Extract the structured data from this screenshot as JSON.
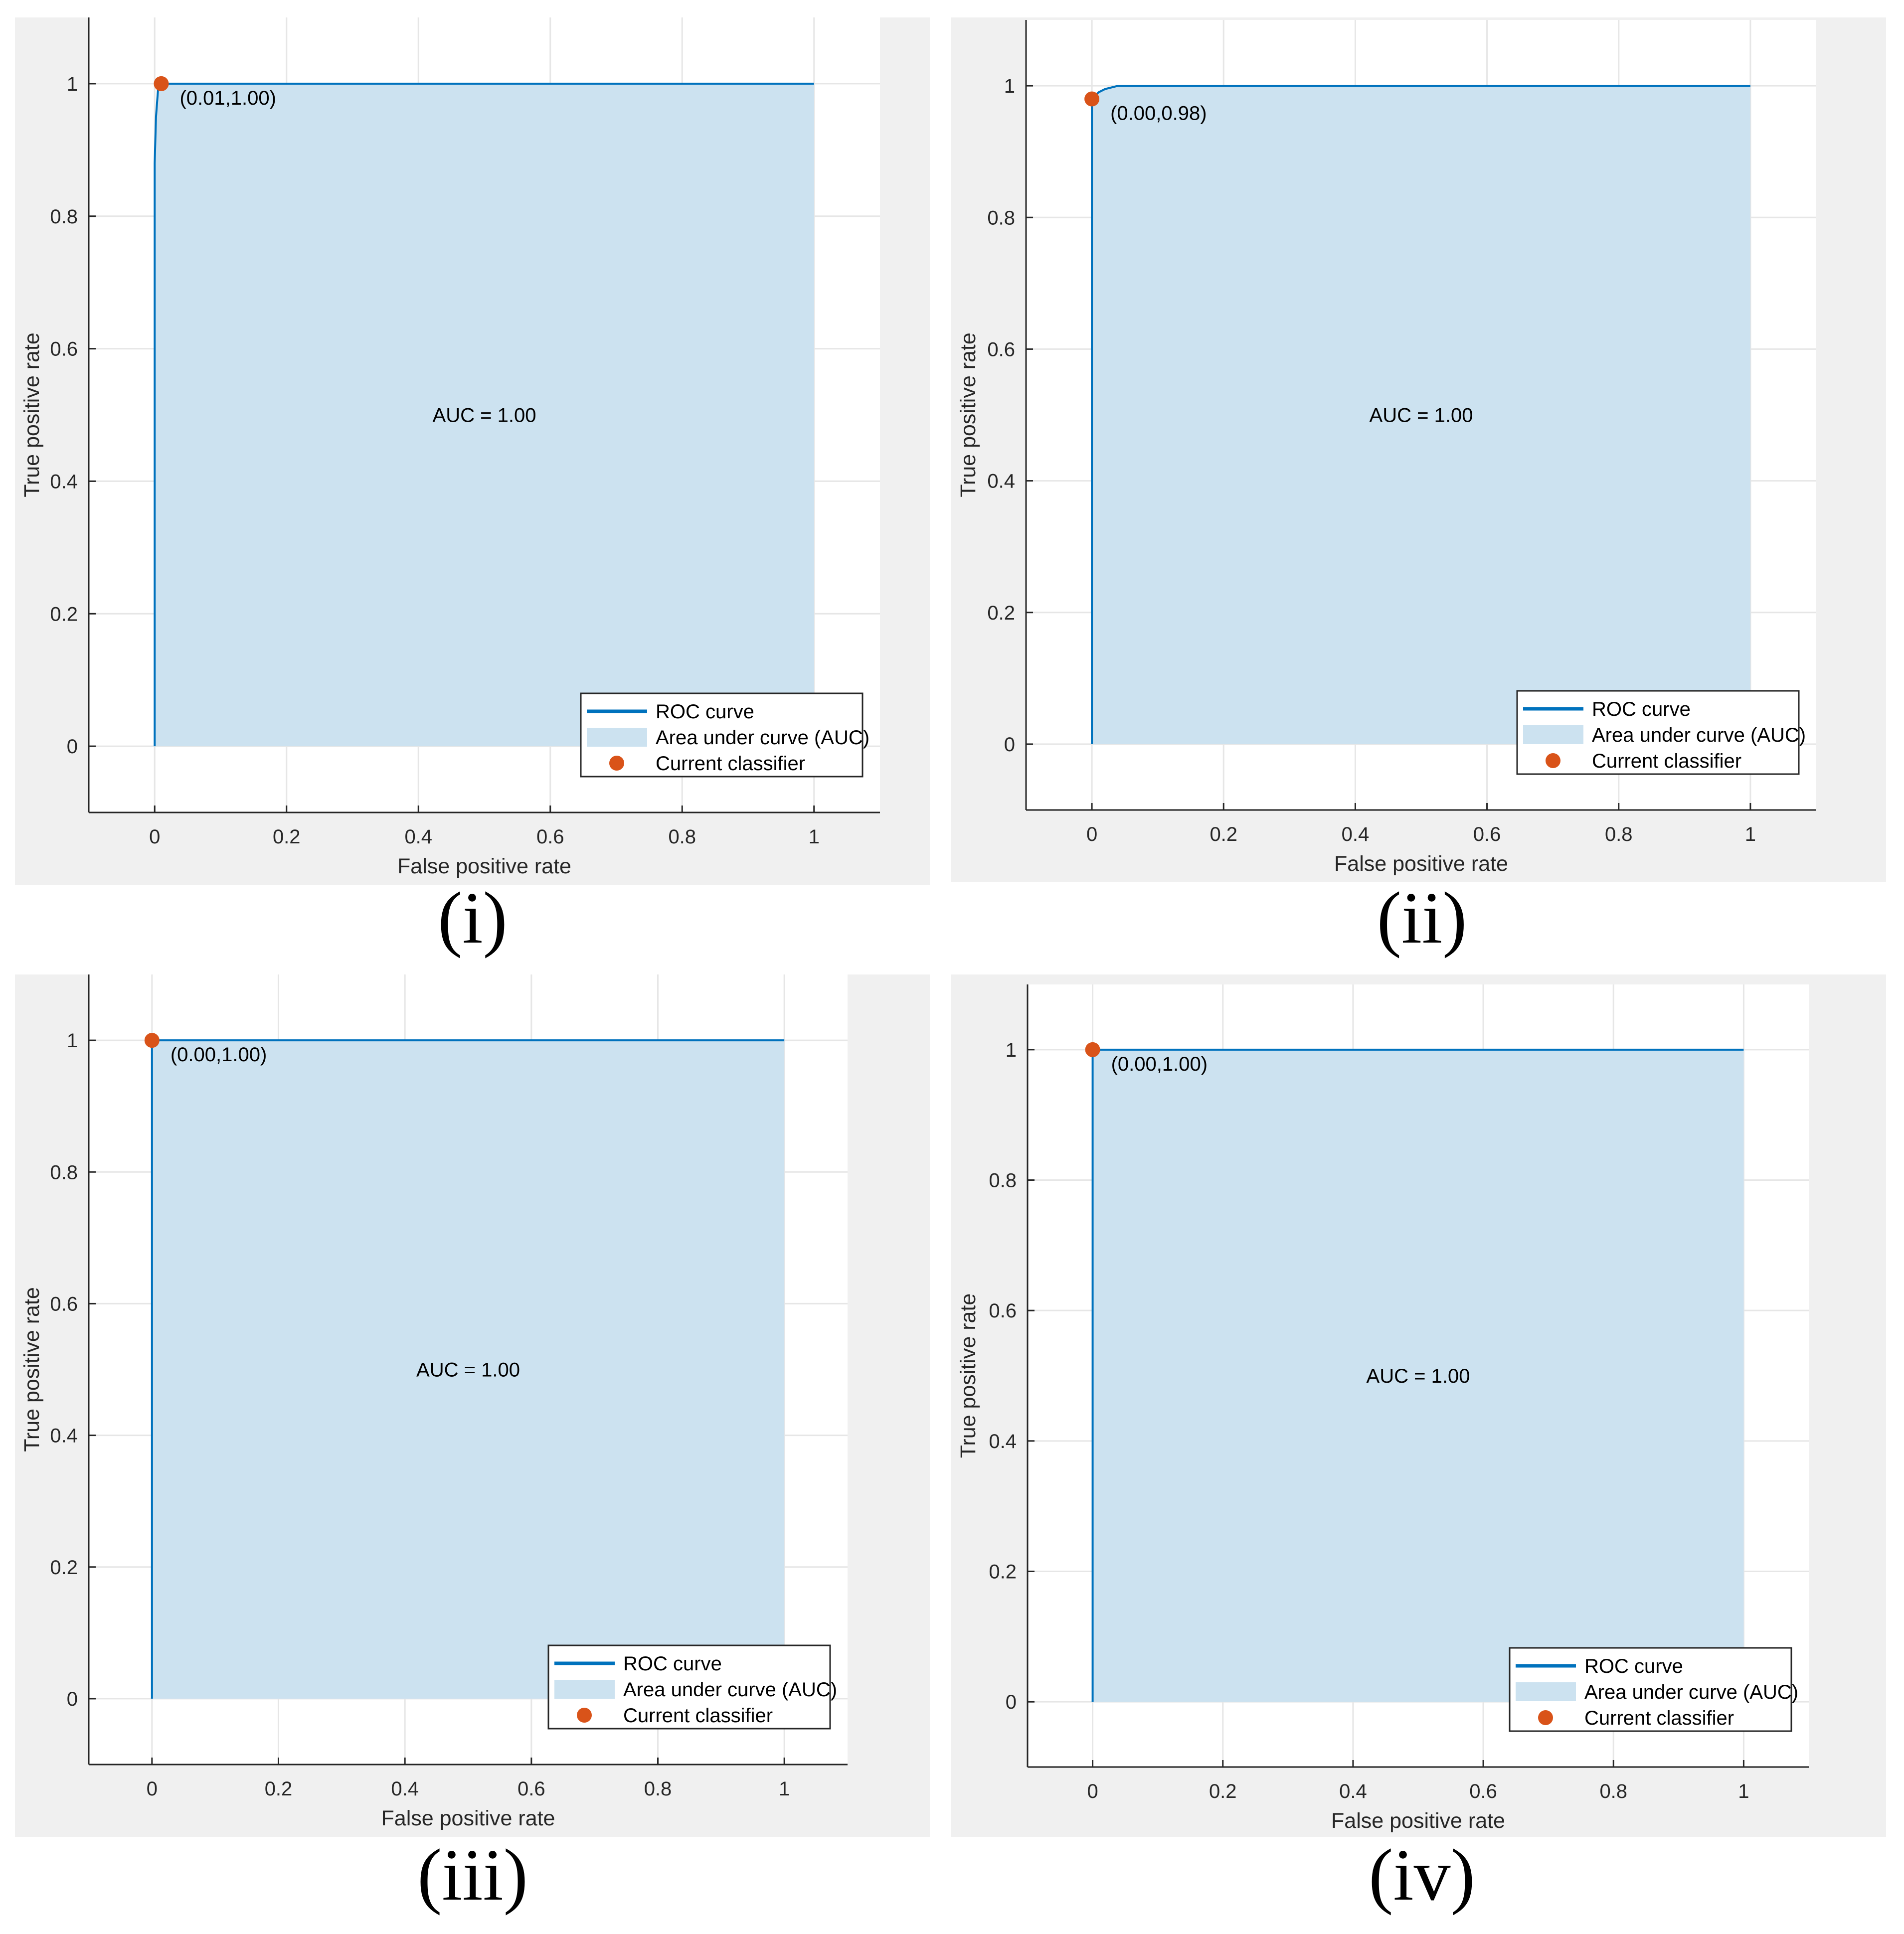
{
  "figure": {
    "colors": {
      "figure_bg": "#f0f0f0",
      "axes_bg": "#ffffff",
      "grid": "#e6e6e6",
      "axis": "#262626",
      "roc_line": "#0072bd",
      "auc_fill": "#cce2f0",
      "classifier": "#d95319"
    },
    "legend_entries": [
      "ROC curve",
      "Area under curve (AUC)",
      "Current classifier"
    ],
    "legend_location": "bottom-right"
  },
  "chart_data": [
    {
      "type": "line",
      "caption": "(i)",
      "xlabel": "False positive rate",
      "ylabel": "True positive rate",
      "xlim": [
        -0.1,
        1.1
      ],
      "ylim": [
        -0.1,
        1.1
      ],
      "xticks": [
        0,
        0.2,
        0.4,
        0.6,
        0.8,
        1
      ],
      "xtick_labels": [
        "0",
        "0.2",
        "0.4",
        "0.6",
        "0.8",
        "1"
      ],
      "yticks": [
        0,
        0.2,
        0.4,
        0.6,
        0.8,
        1
      ],
      "ytick_labels": [
        "0",
        "0.2",
        "0.4",
        "0.6",
        "0.8",
        "1"
      ],
      "grid": true,
      "auc_label": "AUC = 1.00",
      "auc_label_position": [
        0.5,
        0.5
      ],
      "roc_curve": {
        "x": [
          0,
          0,
          0.002,
          0.005,
          0.01,
          1
        ],
        "y": [
          0,
          0.88,
          0.95,
          0.99,
          1.0,
          1.0
        ]
      },
      "classifier_point": [
        0.01,
        1.0
      ],
      "point_label": "(0.01,1.00)"
    },
    {
      "type": "line",
      "caption": "(ii)",
      "xlabel": "False positive rate",
      "ylabel": "True positive rate",
      "xlim": [
        -0.1,
        1.1
      ],
      "ylim": [
        -0.1,
        1.1
      ],
      "xticks": [
        0,
        0.2,
        0.4,
        0.6,
        0.8,
        1
      ],
      "xtick_labels": [
        "0",
        "0.2",
        "0.4",
        "0.6",
        "0.8",
        "1"
      ],
      "yticks": [
        0,
        0.2,
        0.4,
        0.6,
        0.8,
        1
      ],
      "ytick_labels": [
        "0",
        "0.2",
        "0.4",
        "0.6",
        "0.8",
        "1"
      ],
      "grid": true,
      "auc_label": "AUC = 1.00",
      "auc_label_position": [
        0.5,
        0.5
      ],
      "roc_curve": {
        "x": [
          0,
          0,
          0.005,
          0.01,
          0.02,
          0.04,
          1
        ],
        "y": [
          0,
          0.98,
          0.985,
          0.99,
          0.995,
          1.0,
          1.0
        ]
      },
      "classifier_point": [
        0.0,
        0.98
      ],
      "point_label": "(0.00,0.98)"
    },
    {
      "type": "line",
      "caption": "(iii)",
      "xlabel": "False positive rate",
      "ylabel": "True positive rate",
      "xlim": [
        -0.1,
        1.1
      ],
      "ylim": [
        -0.1,
        1.1
      ],
      "xticks": [
        0,
        0.2,
        0.4,
        0.6,
        0.8,
        1
      ],
      "xtick_labels": [
        "0",
        "0.2",
        "0.4",
        "0.6",
        "0.8",
        "1"
      ],
      "yticks": [
        0,
        0.2,
        0.4,
        0.6,
        0.8,
        1
      ],
      "ytick_labels": [
        "0",
        "0.2",
        "0.4",
        "0.6",
        "0.8",
        "1"
      ],
      "grid": true,
      "auc_label": "AUC = 1.00",
      "auc_label_position": [
        0.5,
        0.5
      ],
      "roc_curve": {
        "x": [
          0,
          0,
          1
        ],
        "y": [
          0,
          1.0,
          1.0
        ]
      },
      "classifier_point": [
        0.0,
        1.0
      ],
      "point_label": "(0.00,1.00)"
    },
    {
      "type": "line",
      "caption": "(iv)",
      "xlabel": "False positive rate",
      "ylabel": "True positive rate",
      "xlim": [
        -0.1,
        1.1
      ],
      "ylim": [
        -0.1,
        1.1
      ],
      "xticks": [
        0,
        0.2,
        0.4,
        0.6,
        0.8,
        1
      ],
      "xtick_labels": [
        "0",
        "0.2",
        "0.4",
        "0.6",
        "0.8",
        "1"
      ],
      "yticks": [
        0,
        0.2,
        0.4,
        0.6,
        0.8,
        1
      ],
      "ytick_labels": [
        "0",
        "0.2",
        "0.4",
        "0.6",
        "0.8",
        "1"
      ],
      "grid": true,
      "auc_label": "AUC = 1.00",
      "auc_label_position": [
        0.5,
        0.5
      ],
      "roc_curve": {
        "x": [
          0,
          0,
          1
        ],
        "y": [
          0,
          1.0,
          1.0
        ]
      },
      "classifier_point": [
        0.0,
        1.0
      ],
      "point_label": "(0.00,1.00)"
    }
  ]
}
